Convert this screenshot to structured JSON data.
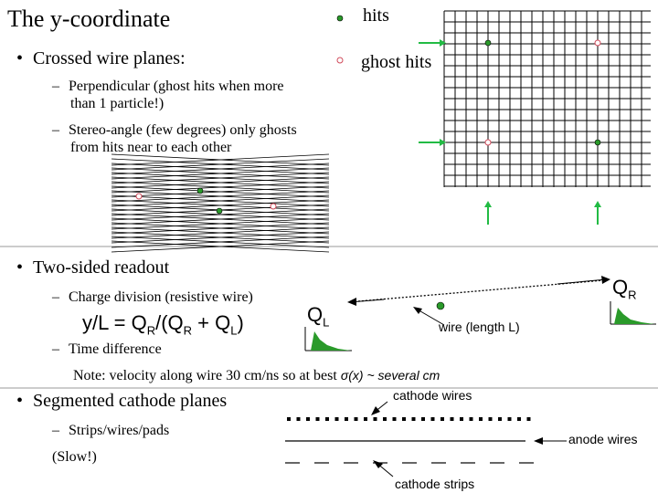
{
  "slide": {
    "title": "The y-coordinate",
    "legend": {
      "hits": "hits",
      "ghost_hits": "ghost hits"
    },
    "bullet1": "Crossed wire planes:",
    "sub1a_line1": "Perpendicular  (ghost hits when more",
    "sub1a_line2": "than 1 particle!)",
    "sub1b_line1": "Stereo-angle (few degrees) only ghosts",
    "sub1b_line2": "from hits near to each other",
    "bullet2": "Two-sided readout",
    "sub2a": "Charge division (resistive wire)",
    "equation": "y/L = Q",
    "eq_R": "R",
    "eq_mid": "/(Q",
    "eq_R2": "R",
    "eq_plus": " + Q",
    "eq_L": "L",
    "eq_close": ")",
    "sub2b": "Time difference",
    "note_pre": "Note: velocity along wire 30 cm/ns so at best ",
    "note_sigma": "σ(x) ~ several cm",
    "bullet3": "Segmented cathode planes",
    "sub3a": "Strips/wires/pads",
    "slow": "(Slow!)",
    "labels": {
      "QL": "Q",
      "QL_sub": "L",
      "QR": "Q",
      "QR_sub": "R",
      "wire": "wire (length L)",
      "cathode_wires": "cathode wires",
      "anode_wires": "anode wires",
      "cathode_strips": "cathode strips"
    },
    "dash": "–",
    "bullet": "•",
    "colors": {
      "hit": "#2a9a2a",
      "ghost": "#d04a5a",
      "arrow": "#22bb44"
    }
  }
}
